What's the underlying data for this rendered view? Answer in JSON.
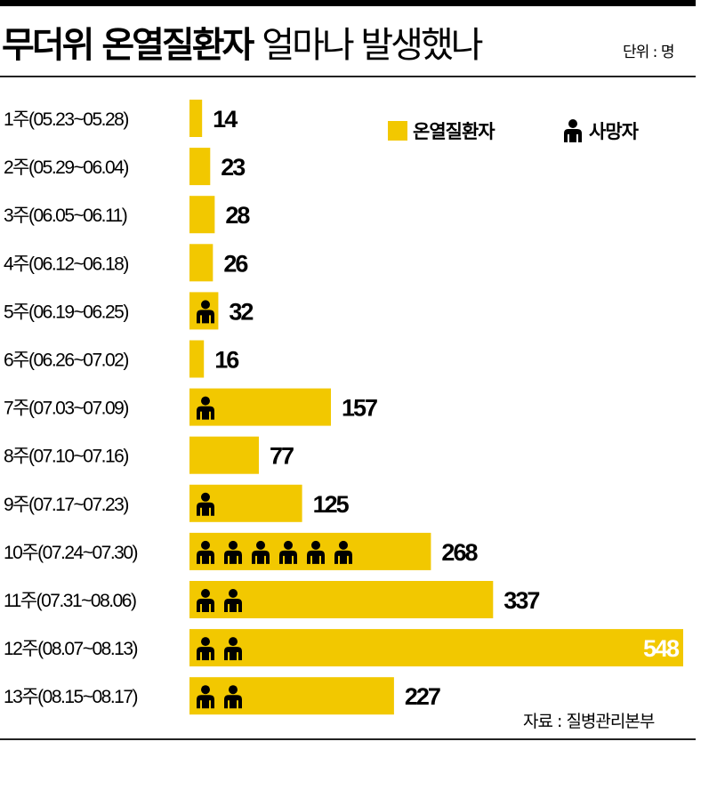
{
  "title": {
    "bold": "무더위 온열질환자",
    "light": "얼마나 발생했나"
  },
  "unit": "단위 : 명",
  "source": "자료 : 질병관리본부",
  "colors": {
    "bar": "#F2C800",
    "text": "#000000",
    "inside_label": "#ffffff"
  },
  "chart_data": {
    "type": "bar",
    "orientation": "horizontal",
    "categories": [
      "1주(05.23~05.28)",
      "2주(05.29~06.04)",
      "3주(06.05~06.11)",
      "4주(06.12~06.18)",
      "5주(06.19~06.25)",
      "6주(06.26~07.02)",
      "7주(07.03~07.09)",
      "8주(07.10~07.16)",
      "9주(07.17~07.23)",
      "10주(07.24~07.30)",
      "11주(07.31~08.06)",
      "12주(08.07~08.13)",
      "13주(08.15~08.17)"
    ],
    "series": [
      {
        "name": "온열질환자",
        "values": [
          14,
          23,
          28,
          26,
          32,
          16,
          157,
          77,
          125,
          268,
          337,
          548,
          227
        ]
      },
      {
        "name": "사망자",
        "values": [
          0,
          0,
          0,
          0,
          1,
          0,
          1,
          0,
          1,
          6,
          2,
          2,
          2
        ]
      }
    ],
    "legend": [
      "온열질환자",
      "사망자"
    ],
    "legend_position": "top-right",
    "grid": false
  }
}
